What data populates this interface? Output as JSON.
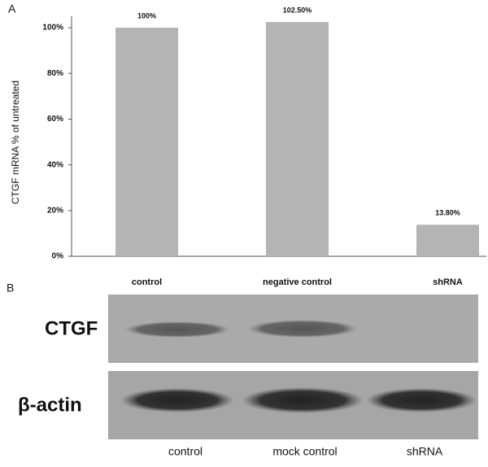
{
  "panel_labels": [
    "A",
    "B"
  ],
  "chart_data": {
    "type": "bar",
    "y_label": "CTGF mRNA  % of untreated",
    "categories": [
      "control",
      "negative control",
      "shRNA"
    ],
    "values": [
      100,
      102.5,
      13.8
    ],
    "value_labels": [
      "100%",
      "102.50%",
      "13.80%"
    ],
    "color": "#b4b4b4",
    "ylim": [
      0,
      105
    ],
    "yticks": [
      {
        "value": 0,
        "label": "0%"
      },
      {
        "value": 20,
        "label": "20%"
      },
      {
        "value": 40,
        "label": "40%"
      },
      {
        "value": 60,
        "label": "60%"
      },
      {
        "value": 80,
        "label": "80%"
      },
      {
        "value": 100,
        "label": "100%"
      }
    ]
  },
  "blot": {
    "rows": [
      "CTGF",
      "β-actin"
    ],
    "lanes": [
      "control",
      "mock control",
      "shRNA"
    ]
  }
}
